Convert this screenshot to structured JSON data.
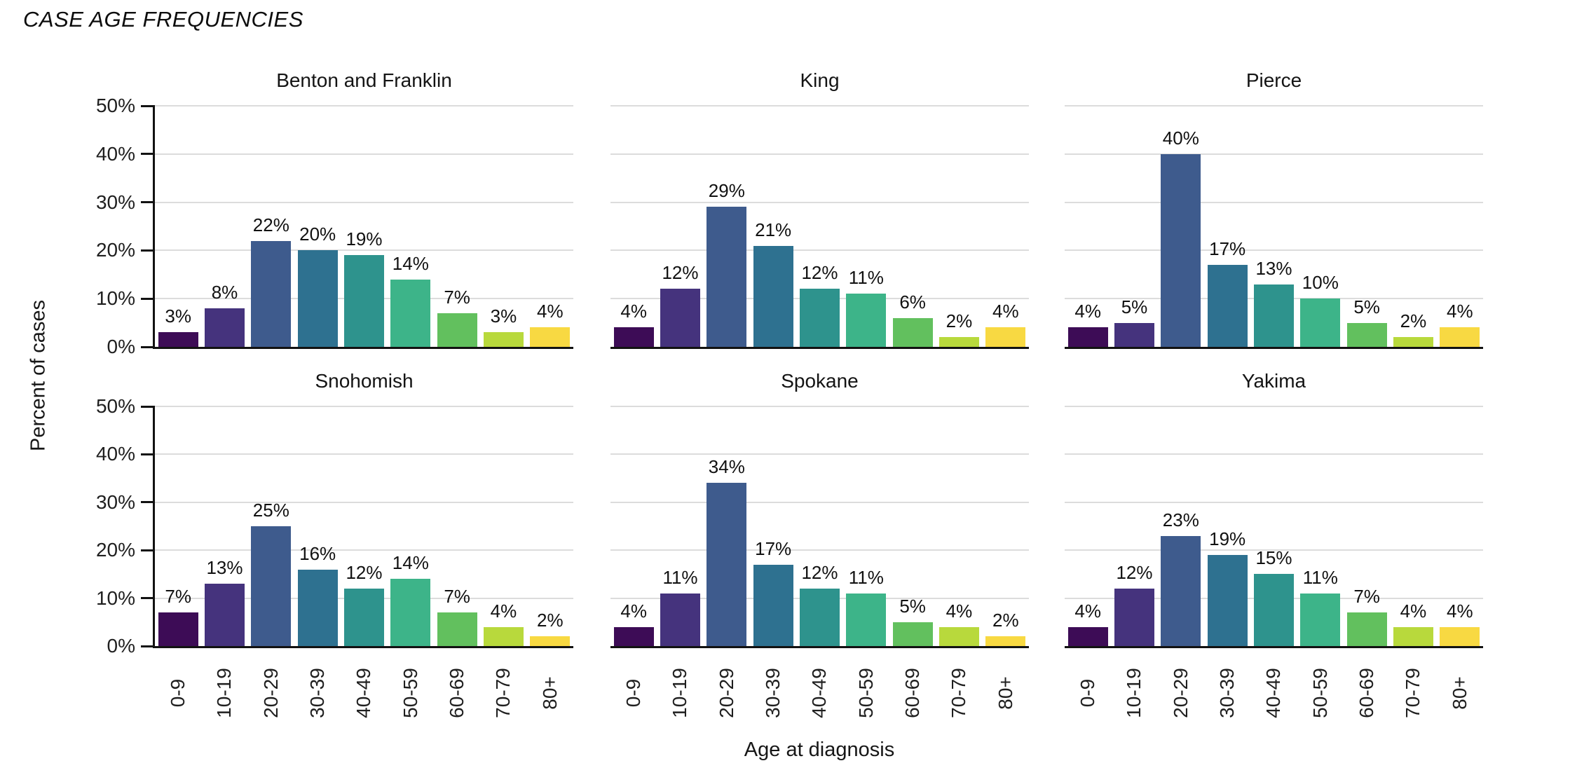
{
  "figure_title": "CASE AGE FREQUENCIES",
  "chart_data": {
    "type": "bar",
    "layout": "2x3-small-multiples",
    "title": "CASE AGE FREQUENCIES",
    "xlabel": "Age at diagnosis",
    "ylabel": "Percent of cases",
    "categories": [
      "0-9",
      "10-19",
      "20-29",
      "30-39",
      "40-49",
      "50-59",
      "60-69",
      "70-79",
      "80+"
    ],
    "ylim": [
      0,
      50
    ],
    "yticks": [
      0,
      10,
      20,
      30,
      40,
      50
    ],
    "ytick_suffix": "%",
    "value_label_suffix": "%",
    "grid": true,
    "legend": "none",
    "series": [
      {
        "name": "Benton and Franklin",
        "values": [
          3,
          8,
          22,
          20,
          19,
          14,
          7,
          3,
          4
        ]
      },
      {
        "name": "King",
        "values": [
          4,
          12,
          29,
          21,
          12,
          11,
          6,
          2,
          4
        ]
      },
      {
        "name": "Pierce",
        "values": [
          4,
          5,
          40,
          17,
          13,
          10,
          5,
          2,
          4
        ]
      },
      {
        "name": "Snohomish",
        "values": [
          7,
          13,
          25,
          16,
          12,
          14,
          7,
          4,
          2
        ]
      },
      {
        "name": "Spokane",
        "values": [
          4,
          11,
          34,
          17,
          12,
          11,
          5,
          4,
          2
        ]
      },
      {
        "name": "Yakima",
        "values": [
          4,
          12,
          23,
          19,
          15,
          11,
          7,
          4,
          4
        ]
      }
    ],
    "colors": {
      "bars": [
        "#3d0c56",
        "#45337d",
        "#3e5b8d",
        "#2e7190",
        "#2e938d",
        "#3db489",
        "#62c05e",
        "#b8d93c",
        "#f8d942"
      ],
      "gridline": "#dcdcdc",
      "axis_line": "#121212",
      "text": "#1f1f1f"
    }
  }
}
